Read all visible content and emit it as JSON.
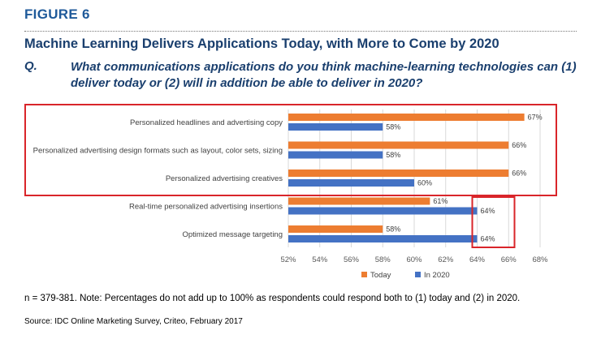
{
  "figure_label": "FIGURE 6",
  "title": "Machine Learning Delivers Applications Today, with More to Come by 2020",
  "question": {
    "label": "Q.",
    "text": "What communications applications do you think machine-learning technologies can (1) deliver today or (2) will in addition be able to deliver in 2020?"
  },
  "colors": {
    "today": "#ed7d31",
    "in2020": "#4472c4",
    "highlight": "#d9252a",
    "grid": "#d9d9d9"
  },
  "chart_data": {
    "type": "bar",
    "orientation": "horizontal",
    "categories": [
      "Personalized headlines and advertising copy",
      "Personalized advertising design formats such as layout, color sets, sizing",
      "Personalized advertising creatives",
      "Real-time personalized advertising insertions",
      "Optimized message targeting"
    ],
    "series": [
      {
        "name": "Today",
        "values": [
          67,
          66,
          66,
          61,
          58
        ]
      },
      {
        "name": "In 2020",
        "values": [
          58,
          58,
          60,
          64,
          64
        ]
      }
    ],
    "xlim": [
      52,
      68
    ],
    "xticks": [
      "52%",
      "54%",
      "56%",
      "58%",
      "60%",
      "62%",
      "64%",
      "66%",
      "68%"
    ],
    "value_suffix": "%",
    "grid": true,
    "legend_position": "bottom"
  },
  "footnote": "n = 379-381. Note: Percentages do not add up to 100% as respondents could respond both to (1) today and (2) in 2020.",
  "source": "Source: IDC Online Marketing Survey, Criteo, February 2017"
}
